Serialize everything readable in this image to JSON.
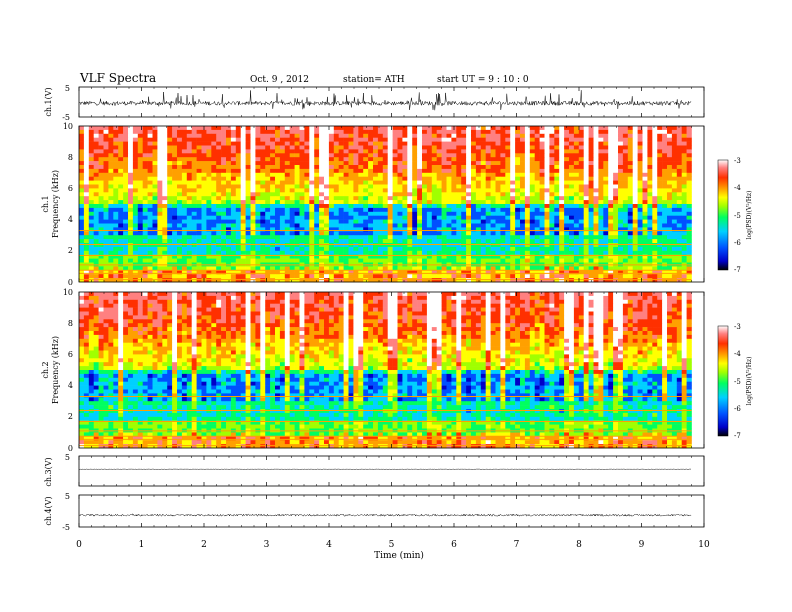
{
  "header": {
    "title": "VLF Spectra",
    "date": "Oct. 9 , 2012",
    "station": "station= ATH",
    "start": "start  UT =   9  : 10 : 0"
  },
  "chart_data": [
    {
      "type": "line",
      "panel": "ch1-waveform",
      "ylabel": "ch.1(V)",
      "ylim": [
        -5,
        5
      ],
      "yticks": [
        "5",
        "-5"
      ],
      "description_level": "noisy waveform around ~-0.4 V with frequent spikes"
    },
    {
      "type": "heatmap",
      "panel": "ch1-spectrogram",
      "ylabel_channel": "ch.1",
      "ylabel": "Frequency  (kHz)",
      "ylim": [
        0,
        10
      ],
      "yticks": [
        "0",
        "2",
        "4",
        "6",
        "8",
        "10"
      ],
      "colorbar": {
        "label": "log(PSD)(V²/Hz)",
        "range": [
          -7,
          -3
        ],
        "ticks": [
          "-3",
          "-4",
          "-5",
          "-6",
          "-7"
        ]
      }
    },
    {
      "type": "heatmap",
      "panel": "ch2-spectrogram",
      "ylabel_channel": "ch.2",
      "ylabel": "Frequency  (kHz)",
      "ylim": [
        0,
        10
      ],
      "yticks": [
        "0",
        "2",
        "4",
        "6",
        "8",
        "10"
      ],
      "colorbar": {
        "label": "log(PSD)(V²/Hz)",
        "range": [
          -7,
          -3
        ],
        "ticks": [
          "-3",
          "-4",
          "-5",
          "-6",
          "-7"
        ]
      }
    },
    {
      "type": "line",
      "panel": "ch3-waveform",
      "ylabel": "ch.3(V)",
      "ylim": [
        -5,
        5
      ],
      "yticks": [
        "5",
        "-5"
      ],
      "description_level": "flat trace near ~0.6 V"
    },
    {
      "type": "line",
      "panel": "ch4-waveform",
      "ylabel": "ch.4(V)",
      "ylim": [
        -5,
        5
      ],
      "yticks": [
        "5",
        "-5"
      ],
      "description_level": "slightly noisy trace near ~-1.3 V"
    }
  ],
  "xaxis": {
    "label": "Time  (min)",
    "range": [
      0,
      10
    ],
    "data_end": 9.8,
    "ticks": [
      "0",
      "1",
      "2",
      "3",
      "4",
      "5",
      "6",
      "7",
      "8",
      "9",
      "10"
    ]
  },
  "colormap": [
    "#000000",
    "#0000c8",
    "#0050ff",
    "#00d0ff",
    "#00ff60",
    "#a0ff00",
    "#ffff00",
    "#ffa000",
    "#ff3000",
    "#ff8080",
    "#ffffff"
  ]
}
